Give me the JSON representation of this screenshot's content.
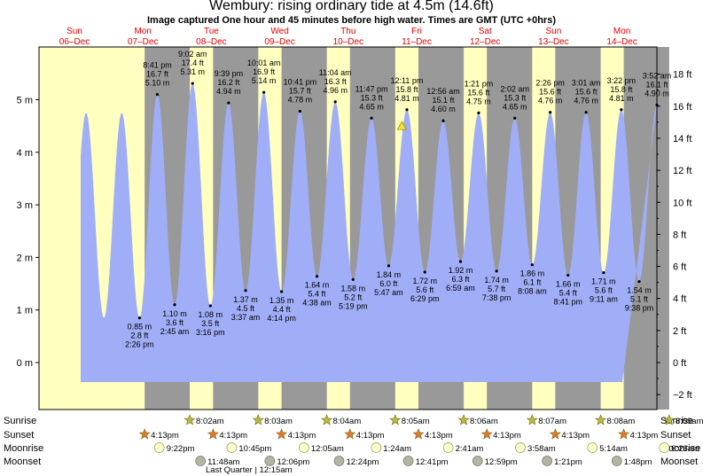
{
  "title": "Wembury: rising  ordinary tide at 4.5m (14.6ft)",
  "subtitle": "Image captured One hour and 45 minutes before high water. Times are GMT (UTC +0hrs)",
  "colors": {
    "tide_fill": "#a0adf7",
    "day_bg": "#ffffc0",
    "night_bg": "#999999",
    "day_label": "#e00000",
    "sun_star": "#b8ba3c",
    "sunset_star": "#e07a28",
    "moon_circle": "#ffffc8",
    "moonset_circle": "#b4b4a4"
  },
  "chart_data": {
    "type": "area",
    "ylabel_left": "m",
    "ylabel_right": "ft",
    "ylim_m": [
      -0.45,
      5.9
    ],
    "left_ticks": [
      "0 m",
      "1 m",
      "2 m",
      "3 m",
      "4 m",
      "5 m"
    ],
    "right_ticks": [
      "−2 ft",
      "0 ft",
      "2 ft",
      "4 ft",
      "6 ft",
      "8 ft",
      "10 ft",
      "12 ft",
      "14 ft",
      "16 ft",
      "18 ft"
    ],
    "days": [
      {
        "name": "Sun",
        "date": "06–Dec"
      },
      {
        "name": "Mon",
        "date": "07–Dec"
      },
      {
        "name": "Tue",
        "date": "08–Dec"
      },
      {
        "name": "Wed",
        "date": "09–Dec"
      },
      {
        "name": "Thu",
        "date": "10–Dec"
      },
      {
        "name": "Fri",
        "date": "11–Dec"
      },
      {
        "name": "Sat",
        "date": "12–Dec"
      },
      {
        "name": "Sun",
        "date": "13–Dec"
      },
      {
        "name": "Mon",
        "date": "14–Dec"
      }
    ],
    "tides": [
      {
        "type": "low",
        "time": "2:26 pm",
        "day": 0,
        "hour": 14.43,
        "m": 0.85,
        "m_label": "0.85 m",
        "ft_label": "2.8 ft"
      },
      {
        "type": "high",
        "time": "8:41 pm",
        "day": 0,
        "hour": 20.68,
        "m": 5.1,
        "m_label": "5.10 m",
        "ft_label": "16.7 ft"
      },
      {
        "type": "low",
        "time": "2:45 am",
        "day": 1,
        "hour": 2.75,
        "m": 1.1,
        "m_label": "1.10 m",
        "ft_label": "3.6 ft"
      },
      {
        "type": "high",
        "time": "9:02 am",
        "day": 1,
        "hour": 9.03,
        "m": 5.31,
        "m_label": "5.31 m",
        "ft_label": "17.4 ft"
      },
      {
        "type": "low",
        "time": "3:16 pm",
        "day": 1,
        "hour": 15.27,
        "m": 1.08,
        "m_label": "1.08 m",
        "ft_label": "3.5 ft"
      },
      {
        "type": "high",
        "time": "9:39 pm",
        "day": 1,
        "hour": 21.65,
        "m": 4.94,
        "m_label": "4.94 m",
        "ft_label": "16.2 ft"
      },
      {
        "type": "low",
        "time": "3:37 am",
        "day": 2,
        "hour": 3.62,
        "m": 1.37,
        "m_label": "1.37 m",
        "ft_label": "4.5 ft"
      },
      {
        "type": "high",
        "time": "10:01 am",
        "day": 2,
        "hour": 10.02,
        "m": 5.14,
        "m_label": "5.14 m",
        "ft_label": "16.9 ft"
      },
      {
        "type": "low",
        "time": "4:14 pm",
        "day": 2,
        "hour": 16.23,
        "m": 1.35,
        "m_label": "1.35 m",
        "ft_label": "4.4 ft"
      },
      {
        "type": "high",
        "time": "10:41 pm",
        "day": 2,
        "hour": 22.68,
        "m": 4.78,
        "m_label": "4.78 m",
        "ft_label": "15.7 ft"
      },
      {
        "type": "low",
        "time": "4:38 am",
        "day": 3,
        "hour": 4.63,
        "m": 1.64,
        "m_label": "1.64 m",
        "ft_label": "5.4 ft"
      },
      {
        "type": "high",
        "time": "11:04 am",
        "day": 3,
        "hour": 11.07,
        "m": 4.96,
        "m_label": "4.96 m",
        "ft_label": "16.3 ft"
      },
      {
        "type": "low",
        "time": "5:19 pm",
        "day": 3,
        "hour": 17.32,
        "m": 1.58,
        "m_label": "1.58 m",
        "ft_label": "5.2 ft"
      },
      {
        "type": "high",
        "time": "11:47 pm",
        "day": 3,
        "hour": 23.78,
        "m": 4.65,
        "m_label": "4.65 m",
        "ft_label": "15.3 ft"
      },
      {
        "type": "low",
        "time": "5:47 am",
        "day": 4,
        "hour": 5.78,
        "m": 1.84,
        "m_label": "1.84 m",
        "ft_label": "6.0 ft"
      },
      {
        "type": "high",
        "time": "12:11 pm",
        "day": 4,
        "hour": 12.18,
        "m": 4.81,
        "m_label": "4.81 m",
        "ft_label": "15.8 ft"
      },
      {
        "type": "low",
        "time": "6:29 pm",
        "day": 4,
        "hour": 18.48,
        "m": 1.72,
        "m_label": "1.72 m",
        "ft_label": "5.6 ft"
      },
      {
        "type": "high",
        "time": "12:56 am",
        "day": 5,
        "hour": 0.93,
        "m": 4.6,
        "m_label": "4.60 m",
        "ft_label": "15.1 ft"
      },
      {
        "type": "low",
        "time": "6:59 am",
        "day": 5,
        "hour": 6.98,
        "m": 1.92,
        "m_label": "1.92 m",
        "ft_label": "6.3 ft"
      },
      {
        "type": "high",
        "time": "1:21 pm",
        "day": 5,
        "hour": 13.35,
        "m": 4.75,
        "m_label": "4.75 m",
        "ft_label": "15.6 ft"
      },
      {
        "type": "low",
        "time": "7:38 pm",
        "day": 5,
        "hour": 19.63,
        "m": 1.74,
        "m_label": "1.74 m",
        "ft_label": "5.7 ft"
      },
      {
        "type": "high",
        "time": "2:02 am",
        "day": 6,
        "hour": 2.03,
        "m": 4.65,
        "m_label": "4.65 m",
        "ft_label": "15.3 ft"
      },
      {
        "type": "low",
        "time": "8:08 am",
        "day": 6,
        "hour": 8.13,
        "m": 1.86,
        "m_label": "1.86 m",
        "ft_label": "6.1 ft"
      },
      {
        "type": "high",
        "time": "2:26 pm",
        "day": 6,
        "hour": 14.43,
        "m": 4.76,
        "m_label": "4.76 m",
        "ft_label": "15.6 ft"
      },
      {
        "type": "low",
        "time": "8:41 pm",
        "day": 6,
        "hour": 20.68,
        "m": 1.66,
        "m_label": "1.66 m",
        "ft_label": "5.4 ft"
      },
      {
        "type": "high",
        "time": "3:01 am",
        "day": 7,
        "hour": 3.02,
        "m": 4.76,
        "m_label": "4.76 m",
        "ft_label": "15.6 ft"
      },
      {
        "type": "low",
        "time": "9:11 am",
        "day": 7,
        "hour": 9.18,
        "m": 1.71,
        "m_label": "1.71 m",
        "ft_label": "5.6 ft"
      },
      {
        "type": "high",
        "time": "3:22 pm",
        "day": 7,
        "hour": 15.37,
        "m": 4.81,
        "m_label": "4.81 m",
        "ft_label": "15.8 ft"
      },
      {
        "type": "low",
        "time": "9:38 pm",
        "day": 7,
        "hour": 21.63,
        "m": 1.54,
        "m_label": "1.54 m",
        "ft_label": "5.1 ft"
      },
      {
        "type": "high",
        "time": "3:52 am",
        "day": 8,
        "hour": 3.87,
        "m": 4.9,
        "m_label": "4.90 m",
        "ft_label": "16.1 ft"
      }
    ],
    "current": {
      "day": 4,
      "hour": 10.43,
      "m": 4.5
    }
  },
  "events": {
    "row_labels": {
      "sunrise": "Sunrise",
      "sunset": "Sunset",
      "moonrise": "Moonrise",
      "moonset": "Moonset"
    },
    "sunrise": [
      {
        "day": 1,
        "time": "8:02am"
      },
      {
        "day": 2,
        "time": "8:03am"
      },
      {
        "day": 3,
        "time": "8:04am"
      },
      {
        "day": 4,
        "time": "8:05am"
      },
      {
        "day": 5,
        "time": "8:06am"
      },
      {
        "day": 6,
        "time": "8:07am"
      },
      {
        "day": 7,
        "time": "8:08am"
      },
      {
        "day": 8,
        "time": "8:09am"
      }
    ],
    "sunset": [
      {
        "day": 0,
        "time": "4:13pm"
      },
      {
        "day": 1,
        "time": "4:13pm"
      },
      {
        "day": 2,
        "time": "4:13pm"
      },
      {
        "day": 3,
        "time": "4:13pm"
      },
      {
        "day": 4,
        "time": "4:13pm"
      },
      {
        "day": 5,
        "time": "4:13pm"
      },
      {
        "day": 6,
        "time": "4:13pm"
      },
      {
        "day": 7,
        "time": "4:13pm"
      }
    ],
    "moonrise": [
      {
        "day": 0,
        "time": "9:22pm"
      },
      {
        "day": 1,
        "time": "10:45pm"
      },
      {
        "day": 3,
        "time": "12:05am"
      },
      {
        "day": 4,
        "time": "1:24am"
      },
      {
        "day": 5,
        "time": "2:41am"
      },
      {
        "day": 6,
        "time": "3:58am"
      },
      {
        "day": 7,
        "time": "5:14am"
      },
      {
        "day": 8,
        "time": "6:26am"
      }
    ],
    "moonset": [
      {
        "day": 1,
        "time": "11:48am"
      },
      {
        "day": 2,
        "time": "12:06pm"
      },
      {
        "day": 3,
        "time": "12:24pm"
      },
      {
        "day": 4,
        "time": "12:41pm"
      },
      {
        "day": 5,
        "time": "12:59pm"
      },
      {
        "day": 6,
        "time": "1:21pm"
      },
      {
        "day": 7,
        "time": "1:48pm"
      }
    ],
    "moon_phase": "Last Quarter | 12:15am"
  }
}
